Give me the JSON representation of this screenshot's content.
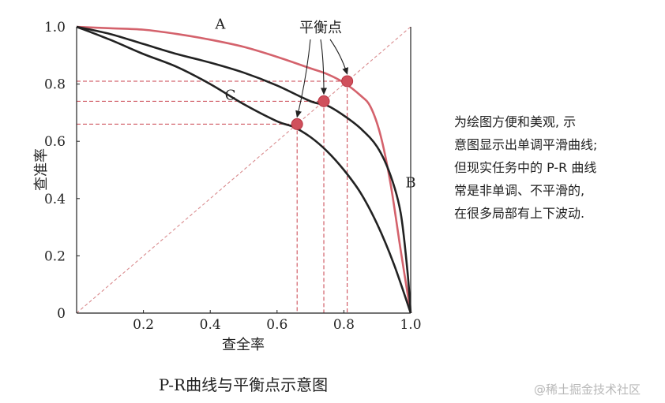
{
  "chart_data": {
    "type": "line",
    "title": "P-R曲线与平衡点示意图",
    "xlabel": "查全率",
    "ylabel": "查准率",
    "xlim": [
      0,
      1.0
    ],
    "ylim": [
      0,
      1.0
    ],
    "x_ticks": [
      "0.2",
      "0.4",
      "0.6",
      "0.8",
      "1.0"
    ],
    "y_ticks": [
      "0",
      "0.2",
      "0.4",
      "0.6",
      "0.8",
      "1.0"
    ],
    "grid": false,
    "diagonal_reference": true,
    "series": [
      {
        "name": "A",
        "color": "#d4626c",
        "x": [
          0,
          0.1,
          0.2,
          0.3,
          0.4,
          0.5,
          0.6,
          0.7,
          0.75,
          0.8,
          0.85,
          0.88,
          0.91,
          0.94,
          0.97,
          1.0
        ],
        "y": [
          1.0,
          0.995,
          0.99,
          0.975,
          0.955,
          0.93,
          0.895,
          0.855,
          0.835,
          0.805,
          0.76,
          0.72,
          0.62,
          0.45,
          0.22,
          0.0
        ],
        "break_even": [
          0.81,
          0.81
        ]
      },
      {
        "name": "B",
        "color": "#222222",
        "x": [
          0,
          0.1,
          0.2,
          0.3,
          0.4,
          0.5,
          0.6,
          0.7,
          0.75,
          0.8,
          0.85,
          0.9,
          0.94,
          0.97,
          0.99,
          1.0
        ],
        "y": [
          1.0,
          0.975,
          0.94,
          0.905,
          0.875,
          0.84,
          0.795,
          0.74,
          0.725,
          0.69,
          0.645,
          0.58,
          0.48,
          0.35,
          0.15,
          0.0
        ],
        "break_even": [
          0.74,
          0.74
        ]
      },
      {
        "name": "C",
        "color": "#222222",
        "x": [
          0,
          0.1,
          0.2,
          0.3,
          0.4,
          0.5,
          0.6,
          0.65,
          0.7,
          0.75,
          0.8,
          0.85,
          0.9,
          0.95,
          1.0
        ],
        "y": [
          1.0,
          0.955,
          0.905,
          0.86,
          0.8,
          0.73,
          0.67,
          0.65,
          0.615,
          0.565,
          0.5,
          0.42,
          0.31,
          0.17,
          0.0
        ],
        "break_even": [
          0.66,
          0.66
        ]
      }
    ],
    "annotation": "平衡点"
  },
  "note": {
    "lines": [
      "为绘图方便和美观, 示",
      "意图显示出单调平滑曲线;",
      "但现实任务中的 P-R 曲线",
      "常是非单调、不平滑的,",
      "在很多局部有上下波动."
    ]
  },
  "watermark": "@稀土掘金技术社区"
}
